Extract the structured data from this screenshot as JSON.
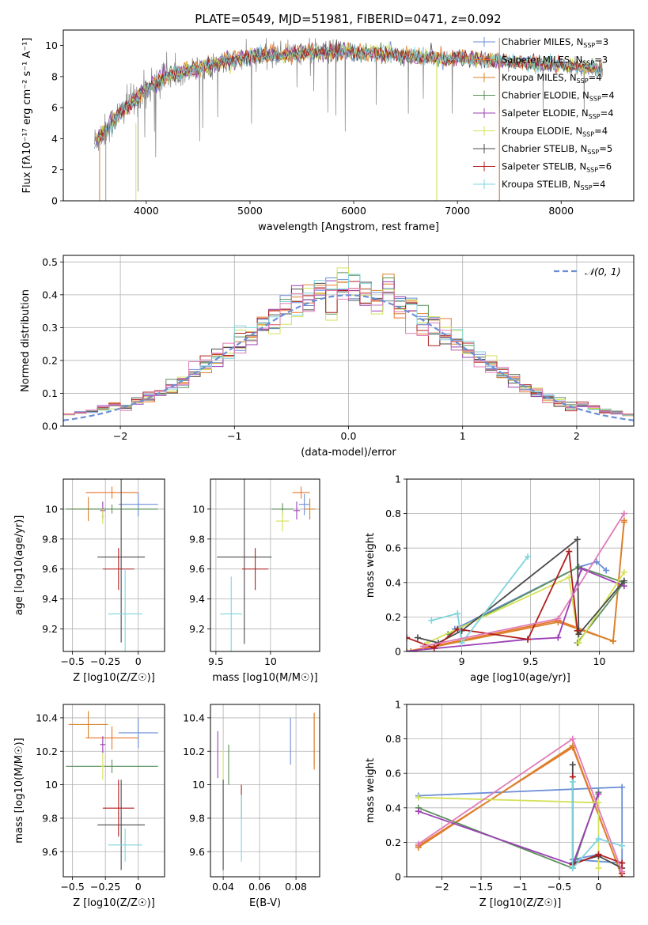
{
  "figure": {
    "title": "PLATE=0549, MJD=51981, FIBERID=0471, z=0.092"
  },
  "colors": {
    "Chabrier MILES": "#6b8fd6",
    "Salpeter MILES": "#e8762b",
    "Kroupa MILES": "#d9822b",
    "Chabrier ELODIE": "#5a8f5a",
    "Salpeter ELODIE": "#9b3fb5",
    "Kroupa ELODIE": "#d4e157",
    "Chabrier STELIB": "#4a4a4a",
    "Salpeter STELIB": "#b01e1e",
    "Kroupa STELIB": "#7fd4dc",
    "extra_pink": "#e07bb8",
    "observed": "#808080"
  },
  "chart_data": [
    {
      "type": "line",
      "id": "spectrum",
      "xlabel": "wavelength [Angstrom, rest frame]",
      "ylabel": "Flux [fλ10⁻¹⁷ erg cm⁻² s⁻¹ A⁻¹]",
      "xlim": [
        3200,
        8700
      ],
      "ylim": [
        0,
        11
      ],
      "xticks": [
        4000,
        5000,
        6000,
        7000,
        8000
      ],
      "yticks": [
        0,
        2,
        4,
        6,
        8,
        10
      ],
      "grid": false,
      "legend_position": "top-right",
      "legend": [
        "Chabrier MILES, N_SSP=3",
        "Salpeter MILES, N_SSP=3",
        "Kroupa MILES, N_SSP=4",
        "Chabrier ELODIE, N_SSP=4",
        "Salpeter ELODIE, N_SSP=4",
        "Kroupa ELODIE, N_SSP=4",
        "Chabrier STELIB, N_SSP=5",
        "Salpeter STELIB, N_SSP=6",
        "Kroupa STELIB, N_SSP=4"
      ],
      "continuum": {
        "x": [
          3500,
          3600,
          3700,
          3800,
          3900,
          4000,
          4100,
          4200,
          4400,
          4600,
          4800,
          5000,
          5200,
          5400,
          5600,
          5800,
          6000,
          6200,
          6400,
          6600,
          6800,
          7000,
          7200,
          7400,
          7600,
          7800,
          8000,
          8200,
          8400
        ],
        "y": [
          3.8,
          4.5,
          5.3,
          6.0,
          6.6,
          7.2,
          7.6,
          8.0,
          8.4,
          8.7,
          9.0,
          9.3,
          9.4,
          9.5,
          9.5,
          9.6,
          9.6,
          9.5,
          9.4,
          9.3,
          9.2,
          9.2,
          9.1,
          9.0,
          8.9,
          8.8,
          8.7,
          8.6,
          8.5
        ]
      }
    },
    {
      "type": "line",
      "id": "residuals",
      "xlabel": "(data-model)/error",
      "ylabel": "Normed distribution",
      "xlim": [
        -2.5,
        2.5
      ],
      "ylim": [
        0,
        0.52
      ],
      "xticks": [
        -2,
        -1,
        0,
        1,
        2
      ],
      "yticks": [
        0.0,
        0.1,
        0.2,
        0.3,
        0.4,
        0.5
      ],
      "grid": true,
      "legend_position": "top-right",
      "legend": [
        "N(0,1)"
      ],
      "reference": "gaussian N(0,1)",
      "bin_width": 0.1
    },
    {
      "type": "scatter",
      "id": "age-vs-Z",
      "xlabel": "Z [log10(Z/Z☉)]",
      "ylabel": "age  [log10(age/yr)]",
      "xlim": [
        -0.57,
        0.2
      ],
      "ylim": [
        9.05,
        10.2
      ],
      "xticks": [
        -0.5,
        -0.25,
        0.0
      ],
      "yticks": [
        9.2,
        9.4,
        9.6,
        9.8,
        10.0
      ],
      "grid": true,
      "points": [
        {
          "model": "Chabrier MILES",
          "x": 0.0,
          "xerr": 0.15,
          "y": 10.03,
          "yerr": 0.08
        },
        {
          "model": "Salpeter MILES",
          "x": -0.2,
          "xerr": 0.2,
          "y": 10.11,
          "yerr": 0.04
        },
        {
          "model": "Kroupa MILES",
          "x": -0.38,
          "xerr": 0.14,
          "y": 10.0,
          "yerr": 0.08
        },
        {
          "model": "Chabrier ELODIE",
          "x": -0.2,
          "xerr": 0.35,
          "y": 10.0,
          "yerr": 0.03
        },
        {
          "model": "Salpeter ELODIE",
          "x": -0.27,
          "xerr": 0.02,
          "y": 9.99,
          "yerr": 0.06
        },
        {
          "model": "Kroupa ELODIE",
          "x": -0.27,
          "xerr": 0.01,
          "y": 9.95,
          "yerr": 0.05
        },
        {
          "model": "Chabrier STELIB",
          "x": -0.13,
          "xerr": 0.18,
          "y": 9.68,
          "yerr": 0.57
        },
        {
          "model": "Salpeter STELIB",
          "x": -0.15,
          "xerr": 0.12,
          "y": 9.6,
          "yerr": 0.14
        },
        {
          "model": "Kroupa STELIB",
          "x": -0.1,
          "xerr": 0.13,
          "y": 9.3,
          "yerr": 0.3
        }
      ]
    },
    {
      "type": "scatter",
      "id": "age-vs-mass",
      "xlabel": "mass [log10(M/M☉)]",
      "ylabel": "",
      "xlim": [
        9.45,
        10.45
      ],
      "ylim": [
        9.05,
        10.2
      ],
      "xticks": [
        9.5,
        10.0
      ],
      "yticks": [
        9.2,
        9.4,
        9.6,
        9.8,
        10.0
      ],
      "grid": true,
      "points": [
        {
          "model": "Chabrier MILES",
          "x": 10.31,
          "xerr": 0.05,
          "y": 10.03,
          "yerr": 0.07
        },
        {
          "model": "Salpeter MILES",
          "x": 10.28,
          "xerr": 0.08,
          "y": 10.11,
          "yerr": 0.04
        },
        {
          "model": "Kroupa MILES",
          "x": 10.36,
          "xerr": 0.05,
          "y": 10.0,
          "yerr": 0.07
        },
        {
          "model": "Chabrier ELODIE",
          "x": 10.11,
          "xerr": 0.1,
          "y": 10.0,
          "yerr": 0.04
        },
        {
          "model": "Salpeter ELODIE",
          "x": 10.24,
          "xerr": 0.03,
          "y": 9.99,
          "yerr": 0.06
        },
        {
          "model": "Kroupa ELODIE",
          "x": 10.11,
          "xerr": 0.06,
          "y": 9.92,
          "yerr": 0.07
        },
        {
          "model": "Chabrier STELIB",
          "x": 9.76,
          "xerr": 0.25,
          "y": 9.68,
          "yerr": 0.58
        },
        {
          "model": "Salpeter STELIB",
          "x": 9.86,
          "xerr": 0.12,
          "y": 9.6,
          "yerr": 0.14
        },
        {
          "model": "Kroupa STELIB",
          "x": 9.64,
          "xerr": 0.1,
          "y": 9.3,
          "yerr": 0.25
        }
      ]
    },
    {
      "type": "line",
      "id": "massweight-vs-age",
      "xlabel": "age  [log10(age/yr)]",
      "ylabel": "mass weight",
      "xlim": [
        8.6,
        10.25
      ],
      "ylim": [
        0,
        1.0
      ],
      "xticks": [
        9.0,
        9.5,
        10.0
      ],
      "yticks": [
        0.0,
        0.2,
        0.4,
        0.6,
        0.8,
        1.0
      ],
      "grid": true,
      "series": [
        {
          "model": "Chabrier MILES",
          "x": [
            8.95,
            9.85,
            9.98,
            10.05
          ],
          "y": [
            0.13,
            0.49,
            0.52,
            0.47
          ]
        },
        {
          "model": "Salpeter MILES",
          "x": [
            8.6,
            9.7,
            10.1,
            10.18
          ],
          "y": [
            0.0,
            0.18,
            0.06,
            0.75
          ]
        },
        {
          "model": "Kroupa MILES",
          "x": [
            8.63,
            9.7,
            10.1,
            10.18
          ],
          "y": [
            0.0,
            0.17,
            0.06,
            0.76
          ]
        },
        {
          "model": "Chabrier ELODIE",
          "x": [
            8.9,
            9.85,
            10.18,
            9.84
          ],
          "y": [
            0.1,
            0.49,
            0.4,
            0.05
          ]
        },
        {
          "model": "Salpeter ELODIE",
          "x": [
            8.58,
            9.48,
            9.7,
            9.87,
            10.18
          ],
          "y": [
            0.0,
            0.07,
            0.08,
            0.48,
            0.38
          ]
        },
        {
          "model": "Kroupa ELODIE",
          "x": [
            8.75,
            9.78,
            9.85,
            10.18
          ],
          "y": [
            0.05,
            0.43,
            0.05,
            0.46
          ]
        },
        {
          "model": "Chabrier STELIB",
          "x": [
            8.68,
            8.83,
            9.0,
            9.84,
            9.85,
            10.18
          ],
          "y": [
            0.08,
            0.05,
            0.12,
            0.65,
            0.1,
            0.41
          ]
        },
        {
          "model": "Salpeter STELIB",
          "x": [
            8.6,
            8.8,
            8.97,
            9.48,
            9.78,
            9.84
          ],
          "y": [
            0.08,
            0.02,
            0.13,
            0.07,
            0.58,
            0.12
          ]
        },
        {
          "model": "Kroupa STELIB",
          "x": [
            8.78,
            8.97,
            9.0,
            9.48
          ],
          "y": [
            0.18,
            0.22,
            0.05,
            0.55
          ]
        },
        {
          "model": "extra_pink",
          "x": [
            8.72,
            9.7,
            10.18
          ],
          "y": [
            0.03,
            0.19,
            0.8
          ]
        }
      ]
    },
    {
      "type": "scatter",
      "id": "mass-vs-Z",
      "xlabel": "Z [log10(Z/Z☉)]",
      "ylabel": "mass [log10(M/M☉)]",
      "xlim": [
        -0.57,
        0.2
      ],
      "ylim": [
        9.45,
        10.48
      ],
      "xticks": [
        -0.5,
        -0.25,
        0.0
      ],
      "yticks": [
        9.6,
        9.8,
        10.0,
        10.2,
        10.4
      ],
      "grid": true,
      "points": [
        {
          "model": "Chabrier MILES",
          "x": 0.0,
          "xerr": 0.15,
          "y": 10.31,
          "yerr": 0.09
        },
        {
          "model": "Salpeter MILES",
          "x": -0.2,
          "xerr": 0.2,
          "y": 10.28,
          "yerr": 0.07
        },
        {
          "model": "Kroupa MILES",
          "x": -0.38,
          "xerr": 0.15,
          "y": 10.36,
          "yerr": 0.08
        },
        {
          "model": "Chabrier ELODIE",
          "x": -0.2,
          "xerr": 0.35,
          "y": 10.11,
          "yerr": 0.04
        },
        {
          "model": "Salpeter ELODIE",
          "x": -0.27,
          "xerr": 0.02,
          "y": 10.24,
          "yerr": 0.05
        },
        {
          "model": "Kroupa ELODIE",
          "x": -0.27,
          "xerr": 0.01,
          "y": 10.11,
          "yerr": 0.08
        },
        {
          "model": "Chabrier STELIB",
          "x": -0.13,
          "xerr": 0.18,
          "y": 9.76,
          "yerr": 0.27
        },
        {
          "model": "Salpeter STELIB",
          "x": -0.15,
          "xerr": 0.12,
          "y": 9.86,
          "yerr": 0.17
        },
        {
          "model": "Kroupa STELIB",
          "x": -0.1,
          "xerr": 0.13,
          "y": 9.64,
          "yerr": 0.1
        }
      ]
    },
    {
      "type": "scatter",
      "id": "mass-vs-EBV",
      "xlabel": "E(B-V)",
      "ylabel": "",
      "xlim": [
        0.033,
        0.093
      ],
      "ylim": [
        9.45,
        10.48
      ],
      "xticks": [
        0.04,
        0.06,
        0.08
      ],
      "yticks": [
        9.6,
        9.8,
        10.0,
        10.2,
        10.4
      ],
      "grid": true,
      "points": [
        {
          "model": "Chabrier MILES",
          "x": 0.077,
          "y": 10.26,
          "yerr": 0.14
        },
        {
          "model": "Salpeter MILES",
          "x": 0.09,
          "y": 10.26,
          "yerr": 0.17
        },
        {
          "model": "Kroupa MILES",
          "x": 0.09,
          "y": 10.27,
          "yerr": 0.16
        },
        {
          "model": "Chabrier ELODIE",
          "x": 0.043,
          "y": 10.12,
          "yerr": 0.12
        },
        {
          "model": "Salpeter ELODIE",
          "x": 0.037,
          "y": 10.18,
          "yerr": 0.14
        },
        {
          "model": "Kroupa ELODIE",
          "x": 0.04,
          "y": 10.11,
          "yerr": 0.1
        },
        {
          "model": "Chabrier STELIB",
          "x": 0.04,
          "y": 9.76,
          "yerr": 0.27
        },
        {
          "model": "Salpeter STELIB",
          "x": 0.05,
          "y": 9.9,
          "yerr": 0.1
        },
        {
          "model": "Kroupa STELIB",
          "x": 0.05,
          "y": 9.74,
          "yerr": 0.2
        }
      ]
    },
    {
      "type": "line",
      "id": "massweight-vs-Z",
      "xlabel": "Z [log10(Z/Z☉)]",
      "ylabel": "mass weight",
      "xlim": [
        -2.45,
        0.45
      ],
      "ylim": [
        0,
        1.0
      ],
      "xticks": [
        -2.0,
        -1.5,
        -1.0,
        -0.5,
        0.0
      ],
      "yticks": [
        0.0,
        0.2,
        0.4,
        0.6,
        0.8,
        1.0
      ],
      "grid": true,
      "series": [
        {
          "model": "Chabrier MILES",
          "x": [
            -2.3,
            0.3,
            0.3,
            -0.33,
            0.0
          ],
          "y": [
            0.47,
            0.52,
            0.08,
            0.1,
            0.13
          ]
        },
        {
          "model": "Salpeter MILES",
          "x": [
            -2.3,
            -0.33,
            0.3
          ],
          "y": [
            0.18,
            0.75,
            0.0
          ]
        },
        {
          "model": "Kroupa MILES",
          "x": [
            -2.3,
            -0.33,
            0.3
          ],
          "y": [
            0.17,
            0.76,
            0.0
          ]
        },
        {
          "model": "Chabrier ELODIE",
          "x": [
            -2.3,
            -0.33,
            0.0
          ],
          "y": [
            0.4,
            0.05,
            0.49
          ]
        },
        {
          "model": "Salpeter ELODIE",
          "x": [
            -2.3,
            -0.33,
            0.0
          ],
          "y": [
            0.38,
            0.07,
            0.48
          ]
        },
        {
          "model": "Kroupa ELODIE",
          "x": [
            -2.3,
            0.0,
            0.0
          ],
          "y": [
            0.46,
            0.43,
            0.05
          ]
        },
        {
          "model": "Chabrier STELIB",
          "x": [
            -0.33,
            -0.33,
            0.0,
            0.3
          ],
          "y": [
            0.65,
            0.08,
            0.12,
            0.05
          ]
        },
        {
          "model": "Salpeter STELIB",
          "x": [
            -0.33,
            -0.33,
            0.0,
            0.3,
            0.3
          ],
          "y": [
            0.58,
            0.07,
            0.13,
            0.08,
            0.02
          ]
        },
        {
          "model": "Kroupa STELIB",
          "x": [
            -0.33,
            -0.33,
            0.0,
            0.3
          ],
          "y": [
            0.55,
            0.05,
            0.22,
            0.18
          ]
        },
        {
          "model": "extra_pink",
          "x": [
            -2.3,
            -0.33,
            0.3
          ],
          "y": [
            0.19,
            0.8,
            0.03
          ]
        }
      ]
    }
  ]
}
